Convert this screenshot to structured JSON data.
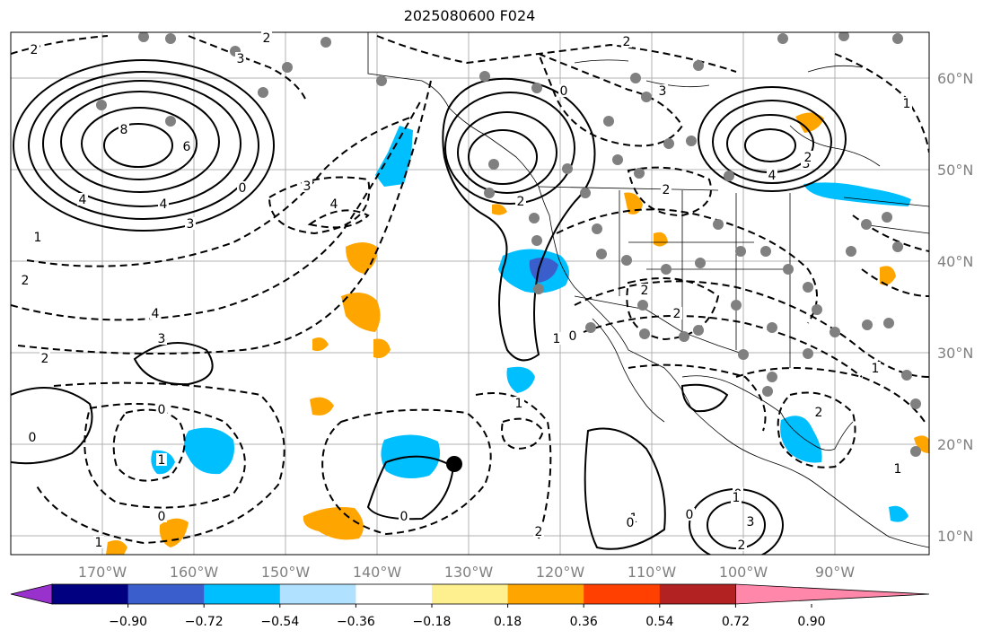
{
  "title": "2025080600 F024",
  "lon_labels": [
    "170°W",
    "160°W",
    "150°W",
    "140°W",
    "130°W",
    "120°W",
    "110°W",
    "100°W",
    "90°W"
  ],
  "lat_labels": [
    "60°N",
    "50°N",
    "40°N",
    "30°N",
    "20°N",
    "10°N"
  ],
  "colorbar": {
    "colors": [
      "#9932cc",
      "#000080",
      "#3a5fcd",
      "#00bfff",
      "#b0e2ff",
      "#ffffff",
      "#fff08f",
      "#ffa500",
      "#ff4000",
      "#b22222",
      "#ff88aa"
    ],
    "tick_labels": [
      "−0.90",
      "−0.72",
      "−0.54",
      "−0.36",
      "−0.18",
      "0.18",
      "0.36",
      "0.54",
      "0.72",
      "0.90"
    ]
  },
  "contour_labels": [
    "2",
    "3",
    "2",
    "4",
    "8",
    "6",
    "4",
    "3",
    "0",
    "1",
    "2",
    "3",
    "4",
    "4",
    "3",
    "2",
    "2",
    "0",
    "2",
    "2",
    "3",
    "4",
    "3",
    "0",
    "1",
    "1",
    "1",
    "0",
    "0",
    "1",
    "2",
    "2",
    "2",
    "1",
    "0",
    "0",
    "1",
    "0",
    "1",
    "2",
    "3",
    "2",
    "1",
    "1",
    "0",
    "0",
    "2"
  ],
  "colors": {
    "contour": "#000000",
    "station": "#808080",
    "grid": "#b0b0b0",
    "coast": "#000000"
  }
}
